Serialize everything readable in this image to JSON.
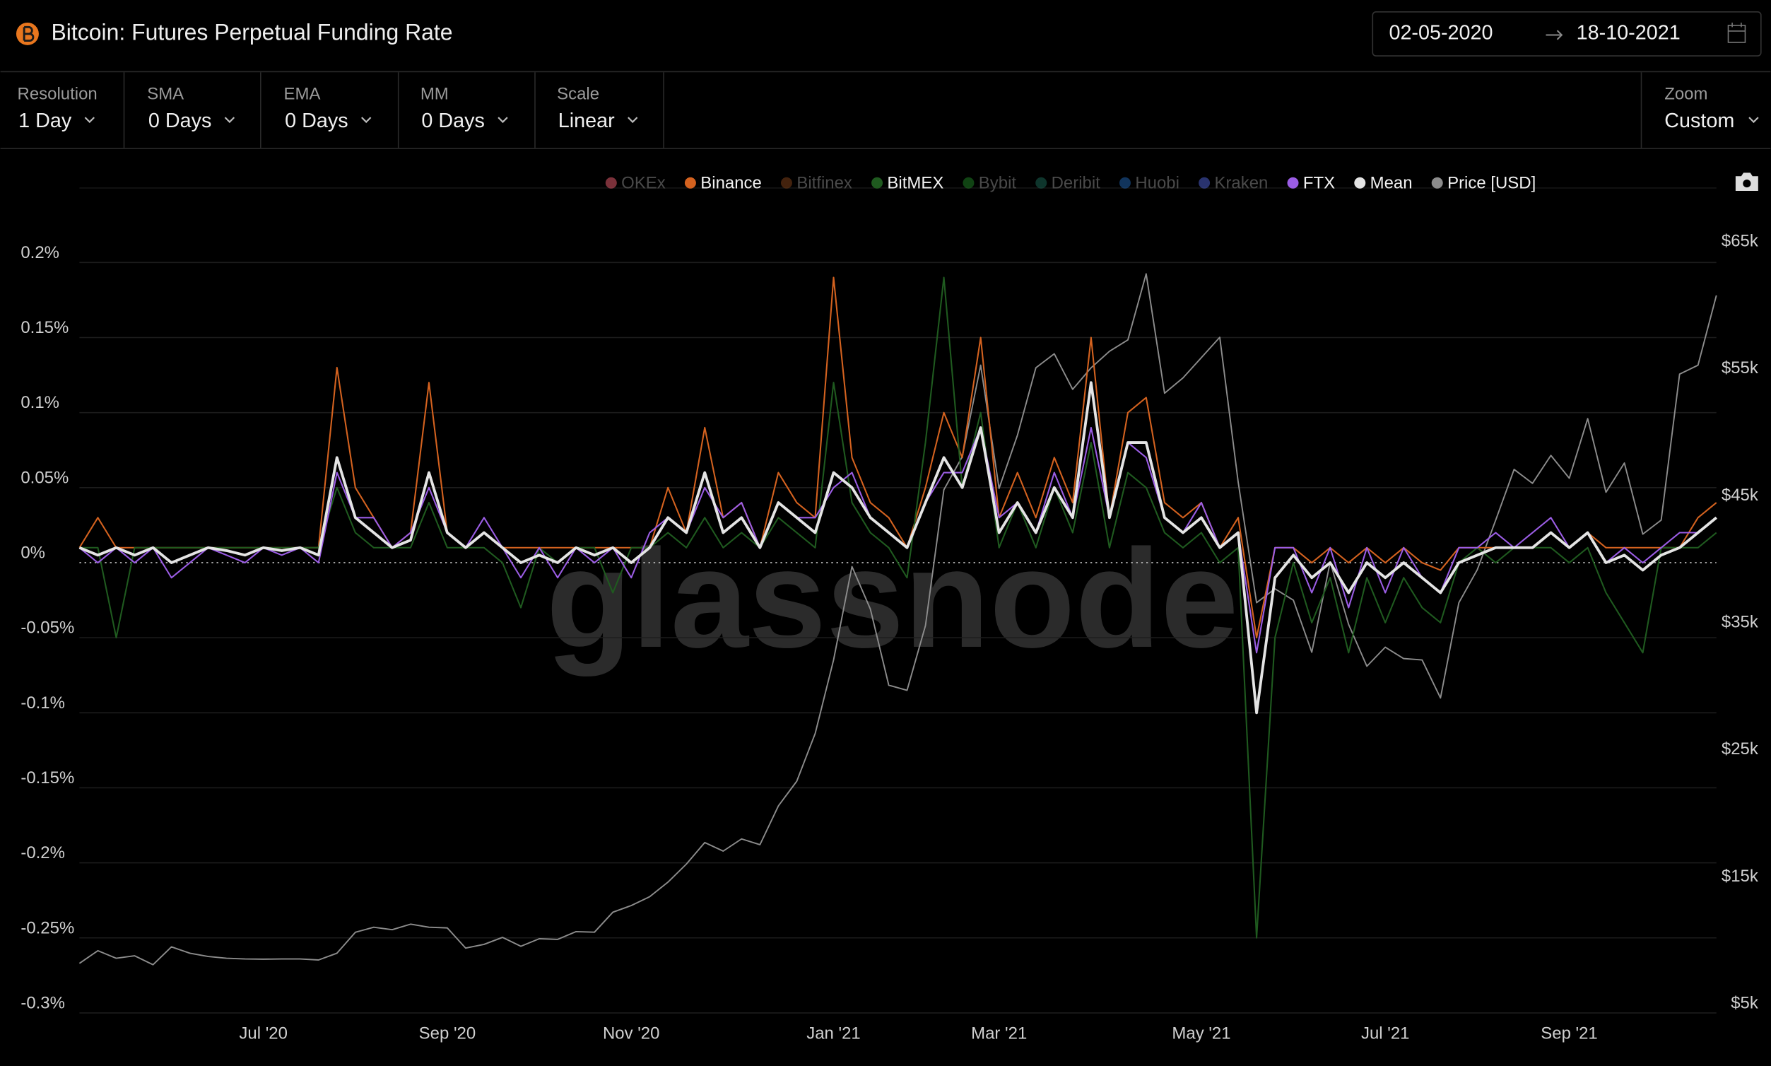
{
  "header": {
    "title": "Bitcoin: Futures Perpetual Funding Rate",
    "date_from": "02-05-2020",
    "date_to": "18-10-2021"
  },
  "controls": [
    {
      "label": "Resolution",
      "value": "1 Day"
    },
    {
      "label": "SMA",
      "value": "0 Days"
    },
    {
      "label": "EMA",
      "value": "0 Days"
    },
    {
      "label": "MM",
      "value": "0 Days"
    },
    {
      "label": "Scale",
      "value": "Linear"
    }
  ],
  "zoom": {
    "label": "Zoom",
    "value": "Custom"
  },
  "chart_data": {
    "type": "line",
    "watermark": "glassnode",
    "categories": [
      null,
      null,
      null,
      null,
      null,
      null,
      null,
      null,
      null,
      null,
      "Jul '20",
      null,
      null,
      null,
      null,
      null,
      null,
      null,
      null,
      null,
      "Sep '20",
      null,
      null,
      null,
      null,
      null,
      null,
      null,
      null,
      null,
      "Nov '20",
      null,
      null,
      null,
      null,
      null,
      null,
      null,
      null,
      null,
      null,
      "Jan '21",
      null,
      null,
      null,
      null,
      null,
      null,
      null,
      null,
      "Mar '21",
      null,
      null,
      null,
      null,
      null,
      null,
      null,
      null,
      null,
      null,
      "May '21",
      null,
      null,
      null,
      null,
      null,
      null,
      null,
      null,
      null,
      "Jul '21",
      null,
      null,
      null,
      null,
      null,
      null,
      null,
      null,
      null,
      "Sep '21",
      null,
      null,
      null,
      null,
      null,
      null,
      null,
      null
    ],
    "ylim": [
      -0.3,
      0.25
    ],
    "yticks": [
      {
        "value": 0.2,
        "label": "0.2%"
      },
      {
        "value": 0.15,
        "label": "0.15%"
      },
      {
        "value": 0.1,
        "label": "0.1%"
      },
      {
        "value": 0.05,
        "label": "0.05%"
      },
      {
        "value": 0,
        "label": "0%"
      },
      {
        "value": -0.05,
        "label": "-0.05%"
      },
      {
        "value": -0.1,
        "label": "-0.1%"
      },
      {
        "value": -0.15,
        "label": "-0.15%"
      },
      {
        "value": -0.2,
        "label": "-0.2%"
      },
      {
        "value": -0.25,
        "label": "-0.25%"
      },
      {
        "value": -0.3,
        "label": "-0.3%"
      }
    ],
    "y2lim": [
      5000,
      70000
    ],
    "y2ticks": [
      {
        "value": 65000,
        "label": "$65k"
      },
      {
        "value": 55000,
        "label": "$55k"
      },
      {
        "value": 45000,
        "label": "$45k"
      },
      {
        "value": 35000,
        "label": "$35k"
      },
      {
        "value": 25000,
        "label": "$25k"
      },
      {
        "value": 15000,
        "label": "$15k"
      },
      {
        "value": 5000,
        "label": "$5k"
      }
    ],
    "grid": true,
    "series": [
      {
        "name": "OKEx",
        "color": "#e05a6a",
        "visible": false
      },
      {
        "name": "Binance",
        "color": "#d4621f",
        "visible": true,
        "values": [
          0.01,
          0.03,
          0.01,
          0.01,
          0.01,
          0.01,
          0.01,
          0.01,
          0.01,
          0.01,
          0.01,
          0.01,
          0.01,
          0.01,
          0.13,
          0.05,
          0.03,
          0.01,
          0.02,
          0.12,
          0.02,
          0.01,
          0.02,
          0.01,
          0.01,
          0.01,
          0.01,
          0.01,
          0.01,
          0.01,
          0.01,
          0.01,
          0.05,
          0.02,
          0.09,
          0.03,
          0.04,
          0.01,
          0.06,
          0.04,
          0.03,
          0.19,
          0.07,
          0.04,
          0.03,
          0.01,
          0.05,
          0.1,
          0.07,
          0.15,
          0.03,
          0.06,
          0.03,
          0.07,
          0.04,
          0.15,
          0.03,
          0.1,
          0.11,
          0.04,
          0.03,
          0.04,
          0.01,
          0.03,
          -0.05,
          0.01,
          0.01,
          0,
          0.01,
          0,
          0.01,
          0,
          0.01,
          0,
          -0.005,
          0.01,
          0.01,
          0.01,
          0.01,
          0.01,
          0.02,
          0.01,
          0.02,
          0.01,
          0.01,
          0.01,
          0.01,
          0.01,
          0.03,
          0.04
        ]
      },
      {
        "name": "Bitfinex",
        "color": "#7a3e17",
        "visible": false
      },
      {
        "name": "BitMEX",
        "color": "#1f5a1f",
        "visible": true,
        "values": [
          0.01,
          0.01,
          -0.05,
          0.01,
          0.01,
          0.01,
          0.01,
          0.01,
          0.01,
          0.01,
          0.01,
          0.01,
          0.01,
          0.01,
          0.05,
          0.02,
          0.01,
          0.01,
          0.01,
          0.04,
          0.01,
          0.01,
          0.01,
          0,
          -0.03,
          0.01,
          0,
          0.01,
          0.01,
          -0.02,
          0.01,
          0.01,
          0.02,
          0.01,
          0.03,
          0.01,
          0.02,
          0.01,
          0.03,
          0.02,
          0.01,
          0.12,
          0.04,
          0.02,
          0.01,
          -0.01,
          0.08,
          0.19,
          0.05,
          0.1,
          0.01,
          0.04,
          0.01,
          0.05,
          0.02,
          0.08,
          0.01,
          0.06,
          0.05,
          0.02,
          0.01,
          0.02,
          0,
          0.01,
          -0.25,
          -0.05,
          0,
          -0.04,
          -0.01,
          -0.06,
          -0.01,
          -0.04,
          -0.01,
          -0.03,
          -0.04,
          0,
          0.01,
          0,
          0.01,
          0.01,
          0.01,
          0,
          0.01,
          -0.02,
          -0.04,
          -0.06,
          0.01,
          0.01,
          0.01,
          0.02
        ]
      },
      {
        "name": "Bybit",
        "color": "#1e7a22",
        "visible": false
      },
      {
        "name": "Deribit",
        "color": "#1a6050",
        "visible": false
      },
      {
        "name": "Huobi",
        "color": "#1f5fa8",
        "visible": false
      },
      {
        "name": "Kraken",
        "color": "#4a5cc8",
        "visible": false
      },
      {
        "name": "FTX",
        "color": "#9b5de5",
        "visible": true,
        "values": [
          0.01,
          0,
          0.01,
          0,
          0.01,
          -0.01,
          0,
          0.01,
          0.005,
          0,
          0.01,
          0.005,
          0.01,
          0,
          0.06,
          0.03,
          0.03,
          0.01,
          0.02,
          0.05,
          0.02,
          0.01,
          0.03,
          0.01,
          -0.01,
          0.01,
          -0.01,
          0.01,
          0,
          0.01,
          -0.01,
          0.02,
          0.03,
          0.02,
          0.05,
          0.03,
          0.04,
          0.01,
          0.04,
          0.03,
          0.03,
          0.05,
          0.06,
          0.03,
          0.02,
          0.01,
          0.04,
          0.06,
          0.06,
          0.09,
          0.03,
          0.04,
          0.02,
          0.06,
          0.03,
          0.09,
          0.03,
          0.08,
          0.07,
          0.03,
          0.02,
          0.04,
          0.01,
          0.02,
          -0.06,
          0.01,
          0.01,
          -0.02,
          0.01,
          -0.03,
          0.01,
          -0.02,
          0.01,
          -0.01,
          -0.02,
          0.01,
          0.01,
          0.02,
          0.01,
          0.02,
          0.03,
          0.01,
          0.02,
          0,
          0.01,
          0,
          0.01,
          0.02,
          0.02,
          0.03
        ]
      },
      {
        "name": "Mean",
        "color": "#e4e4e4",
        "visible": true,
        "values": [
          0.01,
          0.005,
          0.01,
          0.005,
          0.01,
          0,
          0.005,
          0.01,
          0.008,
          0.005,
          0.01,
          0.008,
          0.01,
          0.005,
          0.07,
          0.03,
          0.02,
          0.01,
          0.015,
          0.06,
          0.02,
          0.01,
          0.02,
          0.01,
          0,
          0.005,
          0,
          0.01,
          0.005,
          0.01,
          0,
          0.01,
          0.03,
          0.02,
          0.06,
          0.02,
          0.03,
          0.01,
          0.04,
          0.03,
          0.02,
          0.06,
          0.05,
          0.03,
          0.02,
          0.01,
          0.04,
          0.07,
          0.05,
          0.09,
          0.02,
          0.04,
          0.02,
          0.05,
          0.03,
          0.12,
          0.03,
          0.08,
          0.08,
          0.03,
          0.02,
          0.03,
          0.01,
          0.02,
          -0.1,
          -0.01,
          0.005,
          -0.01,
          0,
          -0.02,
          0,
          -0.01,
          0,
          -0.01,
          -0.02,
          0,
          0.005,
          0.01,
          0.01,
          0.01,
          0.02,
          0.01,
          0.02,
          0,
          0.005,
          -0.005,
          0.005,
          0.01,
          0.02,
          0.03
        ]
      },
      {
        "name": "Price [USD]",
        "color": "#8c8c8c",
        "visible": true,
        "axis": "y2",
        "values": [
          8900,
          9900,
          9300,
          9500,
          8800,
          10200,
          9700,
          9450,
          9300,
          9250,
          9230,
          9250,
          9250,
          9170,
          9700,
          11350,
          11750,
          11550,
          11990,
          11750,
          11700,
          10100,
          10400,
          10950,
          10250,
          10840,
          10790,
          11400,
          11360,
          12930,
          13460,
          14150,
          15300,
          16720,
          18420,
          17740,
          18700,
          18250,
          21300,
          23250,
          27000,
          32800,
          40150,
          36800,
          30800,
          30400,
          35500,
          46200,
          48800,
          56000,
          46300,
          50500,
          55800,
          56900,
          54100,
          55800,
          57100,
          58000,
          63200,
          53800,
          55000,
          56600,
          58200,
          46800,
          37300,
          38400,
          37500,
          33400,
          40500,
          35600,
          32300,
          33800,
          32900,
          32800,
          29800,
          37300,
          39900,
          43800,
          47800,
          46700,
          48900,
          47100,
          51800,
          46000,
          48300,
          42700,
          43800,
          55300,
          56000,
          61500
        ]
      }
    ]
  }
}
